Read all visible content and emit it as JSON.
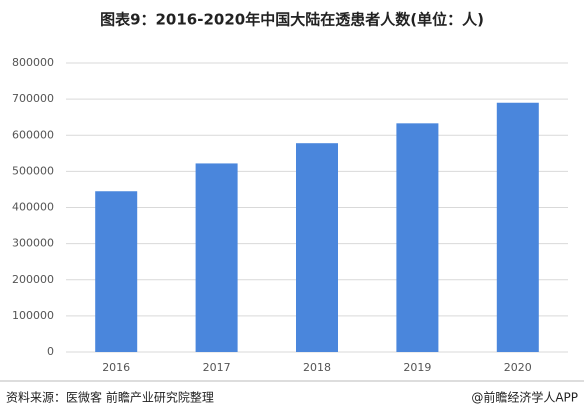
{
  "chart_data": {
    "type": "bar",
    "title": "图表9：2016-2020年中国大陆在透患者人数(单位：人)",
    "categories": [
      "2016",
      "2017",
      "2018",
      "2019",
      "2020"
    ],
    "values": [
      445000,
      522000,
      578000,
      633000,
      690000
    ],
    "color": "#4a86dc",
    "ylim": [
      0,
      800000
    ],
    "yticks": [
      0,
      100000,
      200000,
      300000,
      400000,
      500000,
      600000,
      700000,
      800000
    ],
    "grid": true,
    "source": "资料来源：医微客 前瞻产业研究院整理",
    "credit": "@前瞻经济学人APP"
  }
}
